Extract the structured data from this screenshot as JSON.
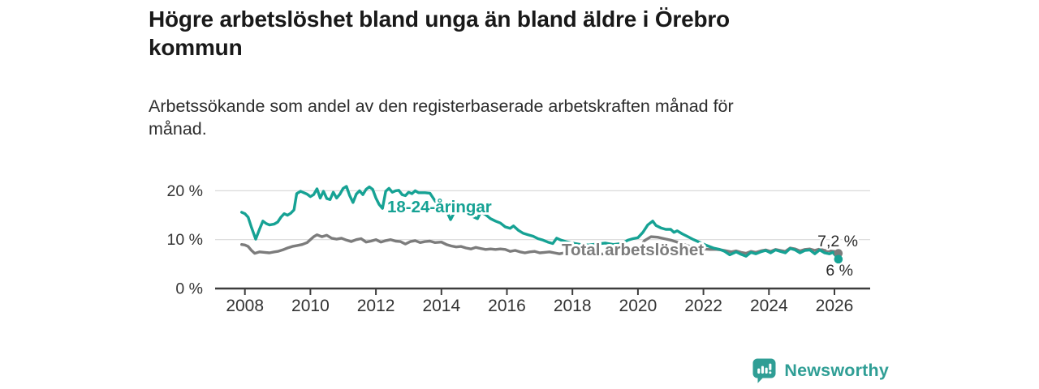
{
  "header": {
    "title": "Högre arbetslöshet bland unga än bland äldre i Örebro kommun",
    "subtitle": "Arbetssökande som andel av den registerbaserade arbetskraften månad för månad."
  },
  "footer": {
    "brand": "Newsworthy",
    "brand_color": "#2f9e95"
  },
  "chart_data": {
    "type": "line",
    "title": "Högre arbetslöshet bland unga än bland äldre i Örebro kommun",
    "subtitle": "Arbetssökande som andel av den registerbaserade arbetskraften månad för månad.",
    "unit": "%",
    "xlabel": "",
    "ylabel": "",
    "xlim": [
      2007.75,
      2026.6
    ],
    "ylim": [
      0,
      22
    ],
    "grid": "horizontal",
    "grid_color": "#d9d9d9",
    "axis_color": "#3d3d3d",
    "tick_text_color": "#333333",
    "legend": "inline-labels",
    "x_ticks": [
      2008,
      2010,
      2012,
      2014,
      2016,
      2018,
      2020,
      2022,
      2024,
      2026
    ],
    "y_ticks": [
      {
        "value": 0,
        "label": "0 %"
      },
      {
        "value": 10,
        "label": "10 %"
      },
      {
        "value": 20,
        "label": "20 %"
      }
    ],
    "series": [
      {
        "name": "18-24-åringar",
        "color": "#16a294",
        "end_label": "6 %",
        "end_value": 6.0,
        "points": [
          [
            2007.9,
            15.6
          ],
          [
            2008.0,
            15.3
          ],
          [
            2008.1,
            14.6
          ],
          [
            2008.2,
            12.5
          ],
          [
            2008.33,
            10.1
          ],
          [
            2008.45,
            12.2
          ],
          [
            2008.55,
            13.8
          ],
          [
            2008.65,
            13.3
          ],
          [
            2008.75,
            13.0
          ],
          [
            2008.9,
            13.2
          ],
          [
            2009.0,
            13.6
          ],
          [
            2009.1,
            14.6
          ],
          [
            2009.2,
            15.3
          ],
          [
            2009.3,
            15.0
          ],
          [
            2009.4,
            15.4
          ],
          [
            2009.5,
            16.1
          ],
          [
            2009.58,
            19.4
          ],
          [
            2009.7,
            19.9
          ],
          [
            2009.8,
            19.6
          ],
          [
            2009.9,
            19.3
          ],
          [
            2010.0,
            18.8
          ],
          [
            2010.1,
            19.2
          ],
          [
            2010.2,
            20.4
          ],
          [
            2010.3,
            18.5
          ],
          [
            2010.4,
            19.9
          ],
          [
            2010.5,
            18.4
          ],
          [
            2010.6,
            18.2
          ],
          [
            2010.7,
            19.7
          ],
          [
            2010.8,
            18.5
          ],
          [
            2010.9,
            19.3
          ],
          [
            2011.0,
            20.5
          ],
          [
            2011.1,
            20.9
          ],
          [
            2011.2,
            19.0
          ],
          [
            2011.3,
            17.6
          ],
          [
            2011.4,
            19.3
          ],
          [
            2011.5,
            20.0
          ],
          [
            2011.6,
            19.2
          ],
          [
            2011.7,
            20.3
          ],
          [
            2011.8,
            20.8
          ],
          [
            2011.9,
            20.3
          ],
          [
            2012.0,
            18.5
          ],
          [
            2012.1,
            17.2
          ],
          [
            2012.2,
            16.4
          ],
          [
            2012.3,
            19.9
          ],
          [
            2012.4,
            20.5
          ],
          [
            2012.5,
            19.7
          ],
          [
            2012.6,
            20.0
          ],
          [
            2012.7,
            20.1
          ],
          [
            2012.8,
            19.2
          ],
          [
            2012.9,
            19.0
          ],
          [
            2013.0,
            19.7
          ],
          [
            2013.1,
            19.4
          ],
          [
            2013.2,
            20.0
          ],
          [
            2013.3,
            19.6
          ],
          [
            2013.5,
            19.6
          ],
          [
            2013.65,
            19.5
          ],
          [
            2013.8,
            18.0
          ],
          [
            2014.0,
            16.4
          ],
          [
            2014.15,
            16.0
          ],
          [
            2014.28,
            14.1
          ],
          [
            2014.42,
            15.9
          ],
          [
            2014.55,
            15.6
          ],
          [
            2014.7,
            15.8
          ],
          [
            2014.85,
            15.1
          ],
          [
            2015.0,
            14.6
          ],
          [
            2015.1,
            14.3
          ],
          [
            2015.2,
            15.6
          ],
          [
            2015.35,
            15.1
          ],
          [
            2015.5,
            14.3
          ],
          [
            2015.65,
            13.8
          ],
          [
            2015.8,
            13.4
          ],
          [
            2015.95,
            12.6
          ],
          [
            2016.1,
            12.3
          ],
          [
            2016.2,
            12.8
          ],
          [
            2016.35,
            11.9
          ],
          [
            2016.5,
            11.3
          ],
          [
            2016.65,
            11.0
          ],
          [
            2016.8,
            10.7
          ],
          [
            2016.95,
            10.2
          ],
          [
            2017.1,
            9.9
          ],
          [
            2017.25,
            9.5
          ],
          [
            2017.4,
            9.2
          ],
          [
            2017.52,
            10.3
          ],
          [
            2017.65,
            9.9
          ],
          [
            2017.8,
            9.6
          ],
          [
            2018.0,
            9.3
          ],
          [
            2018.25,
            9.0
          ],
          [
            2018.5,
            8.9
          ],
          [
            2018.75,
            9.1
          ],
          [
            2019.0,
            9.3
          ],
          [
            2019.25,
            9.0
          ],
          [
            2019.5,
            9.2
          ],
          [
            2019.7,
            9.9
          ],
          [
            2019.85,
            10.2
          ],
          [
            2020.0,
            10.4
          ],
          [
            2020.15,
            11.5
          ],
          [
            2020.3,
            13.0
          ],
          [
            2020.45,
            13.8
          ],
          [
            2020.55,
            12.9
          ],
          [
            2020.7,
            12.4
          ],
          [
            2020.85,
            12.1
          ],
          [
            2021.0,
            12.1
          ],
          [
            2021.1,
            11.5
          ],
          [
            2021.2,
            11.8
          ],
          [
            2021.35,
            11.2
          ],
          [
            2021.5,
            10.7
          ],
          [
            2021.7,
            10.0
          ],
          [
            2021.9,
            9.4
          ],
          [
            2022.1,
            8.8
          ],
          [
            2022.3,
            8.3
          ],
          [
            2022.5,
            8.0
          ],
          [
            2022.65,
            7.6
          ],
          [
            2022.8,
            6.9
          ],
          [
            2023.0,
            7.5
          ],
          [
            2023.15,
            7.0
          ],
          [
            2023.3,
            6.6
          ],
          [
            2023.45,
            7.4
          ],
          [
            2023.6,
            7.1
          ],
          [
            2023.75,
            7.5
          ],
          [
            2023.9,
            7.8
          ],
          [
            2024.05,
            7.3
          ],
          [
            2024.2,
            7.9
          ],
          [
            2024.35,
            7.6
          ],
          [
            2024.5,
            7.3
          ],
          [
            2024.65,
            8.2
          ],
          [
            2024.8,
            7.9
          ],
          [
            2024.95,
            7.3
          ],
          [
            2025.1,
            7.8
          ],
          [
            2025.25,
            7.9
          ],
          [
            2025.4,
            7.1
          ],
          [
            2025.55,
            7.9
          ],
          [
            2025.7,
            7.3
          ],
          [
            2025.85,
            7.1
          ],
          [
            2025.95,
            7.4
          ],
          [
            2026.05,
            6.6
          ],
          [
            2026.12,
            6.0
          ]
        ]
      },
      {
        "name": "Total arbetslöshet",
        "color": "#7c7c7c",
        "end_label": "7,2 %",
        "end_value": 7.2,
        "points": [
          [
            2007.9,
            9.0
          ],
          [
            2008.0,
            8.9
          ],
          [
            2008.1,
            8.6
          ],
          [
            2008.2,
            7.8
          ],
          [
            2008.3,
            7.2
          ],
          [
            2008.45,
            7.5
          ],
          [
            2008.6,
            7.4
          ],
          [
            2008.75,
            7.3
          ],
          [
            2008.9,
            7.5
          ],
          [
            2009.0,
            7.6
          ],
          [
            2009.15,
            7.9
          ],
          [
            2009.3,
            8.3
          ],
          [
            2009.45,
            8.6
          ],
          [
            2009.6,
            8.8
          ],
          [
            2009.75,
            9.0
          ],
          [
            2009.9,
            9.4
          ],
          [
            2010.0,
            10.0
          ],
          [
            2010.1,
            10.6
          ],
          [
            2010.2,
            11.0
          ],
          [
            2010.35,
            10.6
          ],
          [
            2010.5,
            10.9
          ],
          [
            2010.65,
            10.3
          ],
          [
            2010.8,
            10.1
          ],
          [
            2010.95,
            10.3
          ],
          [
            2011.1,
            9.9
          ],
          [
            2011.25,
            9.6
          ],
          [
            2011.4,
            10.0
          ],
          [
            2011.55,
            10.2
          ],
          [
            2011.7,
            9.5
          ],
          [
            2011.85,
            9.7
          ],
          [
            2012.0,
            10.0
          ],
          [
            2012.15,
            9.5
          ],
          [
            2012.3,
            9.8
          ],
          [
            2012.45,
            10.0
          ],
          [
            2012.6,
            9.7
          ],
          [
            2012.75,
            9.6
          ],
          [
            2012.9,
            9.1
          ],
          [
            2013.05,
            9.6
          ],
          [
            2013.2,
            9.8
          ],
          [
            2013.35,
            9.4
          ],
          [
            2013.5,
            9.6
          ],
          [
            2013.65,
            9.7
          ],
          [
            2013.8,
            9.4
          ],
          [
            2014.0,
            9.5
          ],
          [
            2014.15,
            9.0
          ],
          [
            2014.3,
            8.7
          ],
          [
            2014.45,
            8.5
          ],
          [
            2014.6,
            8.6
          ],
          [
            2014.75,
            8.3
          ],
          [
            2014.9,
            8.1
          ],
          [
            2015.05,
            8.4
          ],
          [
            2015.2,
            8.2
          ],
          [
            2015.35,
            8.0
          ],
          [
            2015.5,
            8.1
          ],
          [
            2015.65,
            8.0
          ],
          [
            2015.8,
            8.1
          ],
          [
            2015.95,
            8.0
          ],
          [
            2016.1,
            7.6
          ],
          [
            2016.25,
            7.8
          ],
          [
            2016.4,
            7.5
          ],
          [
            2016.55,
            7.3
          ],
          [
            2016.7,
            7.5
          ],
          [
            2016.85,
            7.6
          ],
          [
            2017.0,
            7.3
          ],
          [
            2017.15,
            7.4
          ],
          [
            2017.3,
            7.5
          ],
          [
            2017.45,
            7.3
          ],
          [
            2017.6,
            7.1
          ],
          [
            2017.75,
            7.3
          ],
          [
            2017.9,
            7.2
          ],
          [
            2018.1,
            7.1
          ],
          [
            2018.3,
            7.3
          ],
          [
            2018.5,
            7.2
          ],
          [
            2018.75,
            7.0
          ],
          [
            2019.0,
            7.1
          ],
          [
            2019.25,
            7.0
          ],
          [
            2019.5,
            7.2
          ],
          [
            2019.75,
            7.5
          ],
          [
            2020.0,
            7.9
          ],
          [
            2020.2,
            9.8
          ],
          [
            2020.4,
            10.6
          ],
          [
            2020.6,
            10.5
          ],
          [
            2020.8,
            10.2
          ],
          [
            2021.0,
            9.9
          ],
          [
            2021.2,
            9.5
          ],
          [
            2021.4,
            9.0
          ],
          [
            2021.6,
            8.6
          ],
          [
            2021.8,
            8.3
          ],
          [
            2022.0,
            8.1
          ],
          [
            2022.2,
            8.0
          ],
          [
            2022.4,
            8.0
          ],
          [
            2022.55,
            7.9
          ],
          [
            2022.7,
            7.7
          ],
          [
            2022.85,
            7.5
          ],
          [
            2023.0,
            7.7
          ],
          [
            2023.15,
            7.4
          ],
          [
            2023.3,
            7.2
          ],
          [
            2023.45,
            7.6
          ],
          [
            2023.6,
            7.4
          ],
          [
            2023.75,
            7.7
          ],
          [
            2023.9,
            7.9
          ],
          [
            2024.05,
            7.6
          ],
          [
            2024.2,
            8.0
          ],
          [
            2024.35,
            7.8
          ],
          [
            2024.5,
            7.6
          ],
          [
            2024.65,
            8.3
          ],
          [
            2024.8,
            8.1
          ],
          [
            2024.95,
            7.7
          ],
          [
            2025.1,
            8.0
          ],
          [
            2025.25,
            8.1
          ],
          [
            2025.4,
            7.8
          ],
          [
            2025.55,
            8.1
          ],
          [
            2025.7,
            7.8
          ],
          [
            2025.85,
            7.7
          ],
          [
            2026.0,
            7.6
          ],
          [
            2026.12,
            7.2
          ]
        ]
      }
    ]
  }
}
